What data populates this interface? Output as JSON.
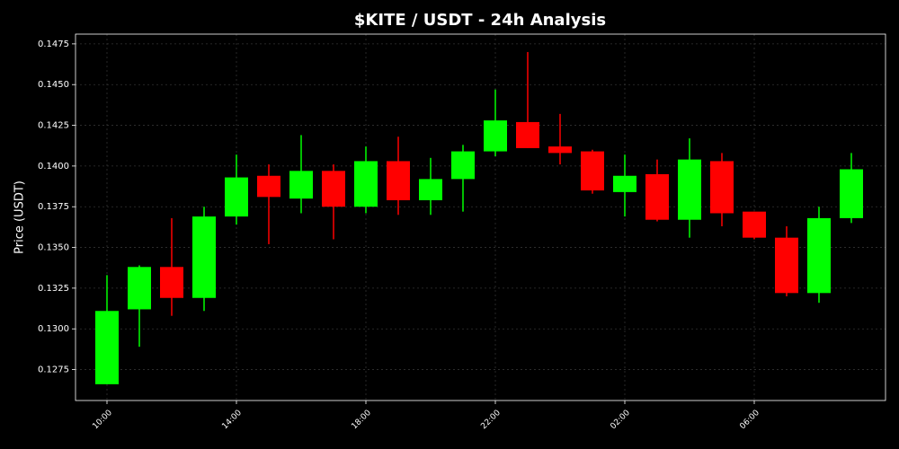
{
  "chart_data": {
    "type": "candlestick",
    "title": "$KITE / USDT - 24h Analysis",
    "y_label": "Price (USDT)",
    "categories": [
      "10:00",
      null,
      null,
      null,
      "14:00",
      null,
      null,
      null,
      "18:00",
      null,
      null,
      null,
      "22:00",
      null,
      null,
      null,
      "02:00",
      null,
      null,
      null,
      "06:00",
      null,
      null,
      null
    ],
    "open": [
      0.1266,
      0.1312,
      0.1338,
      0.1319,
      0.1369,
      0.1394,
      0.138,
      0.1397,
      0.1375,
      0.1403,
      0.1379,
      0.1392,
      0.1409,
      0.1427,
      0.1412,
      0.1409,
      0.1384,
      0.1395,
      0.1367,
      0.1403,
      0.1372,
      0.1356,
      0.1322,
      0.1368
    ],
    "high": [
      0.1333,
      0.1339,
      0.1368,
      0.1375,
      0.1407,
      0.1401,
      0.1419,
      0.1401,
      0.1412,
      0.1418,
      0.1405,
      0.1413,
      0.1447,
      0.147,
      0.1432,
      0.141,
      0.1407,
      0.1404,
      0.1417,
      0.1408,
      0.1372,
      0.1363,
      0.1375,
      0.1408
    ],
    "low": [
      0.1266,
      0.1289,
      0.1308,
      0.1311,
      0.1364,
      0.1352,
      0.1371,
      0.1355,
      0.1371,
      0.137,
      0.137,
      0.1372,
      0.1406,
      0.1411,
      0.1401,
      0.1383,
      0.1369,
      0.1366,
      0.1356,
      0.1363,
      0.1355,
      0.132,
      0.1316,
      0.1365
    ],
    "close": [
      0.1311,
      0.1338,
      0.1319,
      0.1369,
      0.1393,
      0.1381,
      0.1397,
      0.1375,
      0.1403,
      0.1379,
      0.1392,
      0.1409,
      0.1428,
      0.1411,
      0.1408,
      0.1385,
      0.1394,
      0.1367,
      0.1404,
      0.1371,
      0.1356,
      0.1322,
      0.1368,
      0.1398
    ],
    "up_color": "#00ff00",
    "down_color": "#ff0000",
    "ylim": [
      0.1256,
      0.1481
    ],
    "yticks": [
      0.1275,
      {
        "value": 0.13,
        "label": "0.1300"
      },
      0.1325,
      {
        "value": 0.135,
        "label": "0.1350"
      },
      0.1375,
      {
        "value": 0.14,
        "label": "0.1400"
      },
      0.1425,
      {
        "value": 0.145,
        "label": "0.1450"
      },
      0.1475
    ],
    "grid": true
  }
}
